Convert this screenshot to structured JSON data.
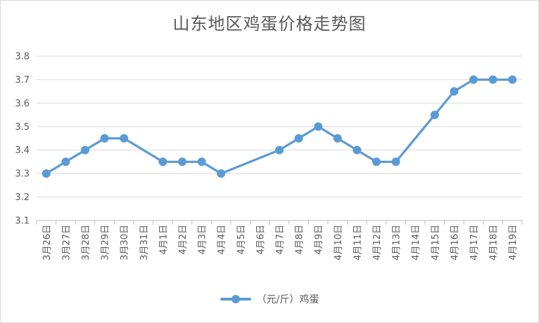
{
  "chart_data": {
    "type": "line",
    "title": "山东地区鸡蛋价格走势图",
    "categories": [
      "3月26日",
      "3月27日",
      "3月28日",
      "3月29日",
      "3月30日",
      "3月31日",
      "4月1日",
      "4月2日",
      "4月3日",
      "4月4日",
      "4月5日",
      "4月6日",
      "4月7日",
      "4月8日",
      "4月9日",
      "4月10日",
      "4月11日",
      "4月12日",
      "4月13日",
      "4月14日",
      "4月15日",
      "4月16日",
      "4月17日",
      "4月18日",
      "4月19日"
    ],
    "series": [
      {
        "name": "（元/斤）鸡蛋",
        "color": "#5b9bd5",
        "values": [
          3.3,
          3.35,
          3.4,
          3.45,
          3.45,
          null,
          3.35,
          3.35,
          3.35,
          3.3,
          null,
          null,
          3.4,
          3.45,
          3.5,
          3.45,
          3.4,
          3.35,
          3.35,
          null,
          3.55,
          3.65,
          3.7,
          3.7,
          3.7
        ]
      }
    ],
    "ylim": [
      3.1,
      3.8
    ],
    "yticks": [
      "3.1",
      "3.2",
      "3.3",
      "3.4",
      "3.5",
      "3.6",
      "3.7",
      "3.8"
    ],
    "grid": true,
    "legend_position": "bottom"
  }
}
